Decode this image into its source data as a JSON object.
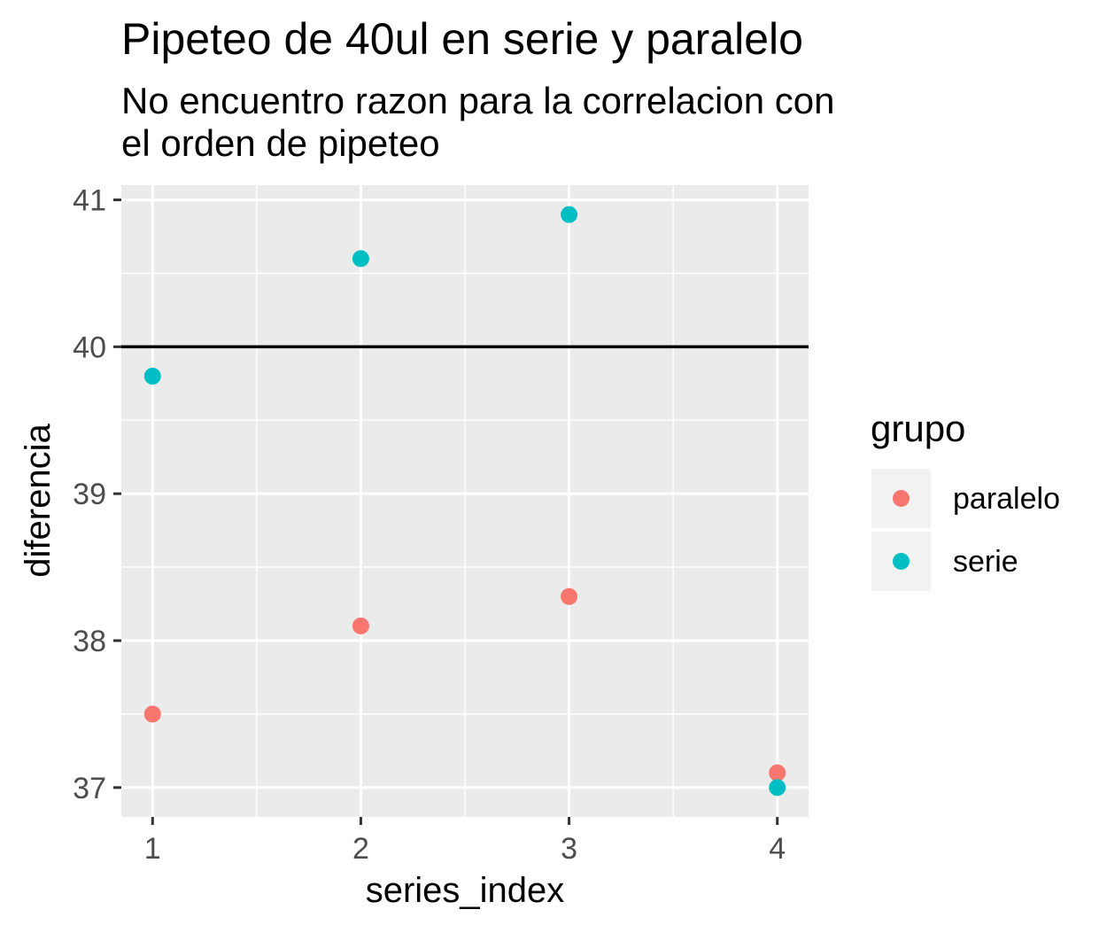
{
  "chart_data": {
    "type": "scatter",
    "title": "Pipeteo de 40ul en serie y paralelo",
    "subtitle_lines": [
      "No encuentro razon para la correlacion con",
      "el orden de pipeteo"
    ],
    "xlabel": "series_index",
    "ylabel": "diferencia",
    "xlim": [
      0.85,
      4.15
    ],
    "ylim": [
      36.8,
      41.1
    ],
    "x_ticks": [
      1,
      2,
      3,
      4
    ],
    "y_ticks": [
      37,
      38,
      39,
      40,
      41
    ],
    "reference_line": {
      "y": 40,
      "color": "#000000"
    },
    "grid": true,
    "panel_background": "#ebebeb",
    "legend": {
      "title": "grupo",
      "position": "right"
    },
    "series": [
      {
        "name": "paralelo",
        "color": "#f8766d",
        "x": [
          1,
          2,
          3,
          4
        ],
        "y": [
          37.5,
          38.1,
          38.3,
          37.1
        ]
      },
      {
        "name": "serie",
        "color": "#00bfc4",
        "x": [
          1,
          2,
          3,
          4
        ],
        "y": [
          39.8,
          40.6,
          40.9,
          37.0
        ]
      }
    ]
  }
}
